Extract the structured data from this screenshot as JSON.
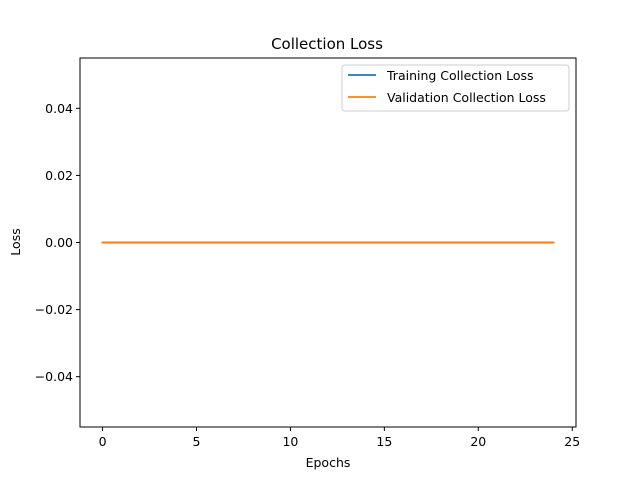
{
  "chart_data": {
    "type": "line",
    "title": "Collection Loss",
    "xlabel": "Epochs",
    "ylabel": "Loss",
    "xlim": [
      -1.2,
      25.2
    ],
    "ylim": [
      -0.055,
      0.055
    ],
    "x_ticks": [
      0,
      5,
      10,
      15,
      20,
      25
    ],
    "x_tick_labels": [
      "0",
      "5",
      "10",
      "15",
      "20",
      "25"
    ],
    "y_ticks": [
      -0.04,
      -0.02,
      0.0,
      0.02,
      0.04
    ],
    "y_tick_labels": [
      "−0.04",
      "−0.02",
      "0.00",
      "0.02",
      "0.04"
    ],
    "grid": false,
    "legend_position": "upper right",
    "x": [
      0,
      1,
      2,
      3,
      4,
      5,
      6,
      7,
      8,
      9,
      10,
      11,
      12,
      13,
      14,
      15,
      16,
      17,
      18,
      19,
      20,
      21,
      22,
      23,
      24
    ],
    "series": [
      {
        "name": "Training Collection Loss",
        "color": "#1f77b4",
        "values": [
          0,
          0,
          0,
          0,
          0,
          0,
          0,
          0,
          0,
          0,
          0,
          0,
          0,
          0,
          0,
          0,
          0,
          0,
          0,
          0,
          0,
          0,
          0,
          0,
          0
        ]
      },
      {
        "name": "Validation Collection Loss",
        "color": "#ff7f0e",
        "values": [
          0,
          0,
          0,
          0,
          0,
          0,
          0,
          0,
          0,
          0,
          0,
          0,
          0,
          0,
          0,
          0,
          0,
          0,
          0,
          0,
          0,
          0,
          0,
          0,
          0
        ]
      }
    ]
  }
}
